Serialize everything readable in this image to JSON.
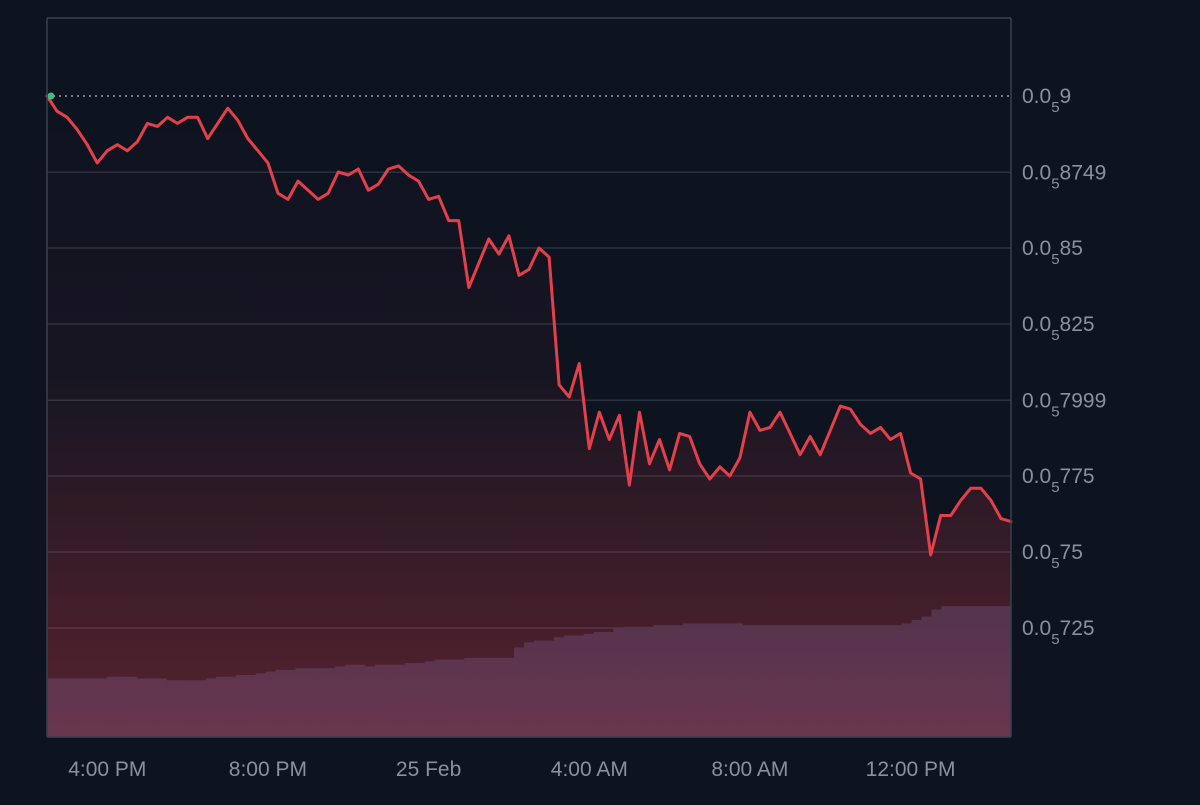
{
  "chart_data": {
    "type": "area",
    "title": "",
    "xlabel": "",
    "ylabel": "",
    "grid": true,
    "colors": {
      "background": "#0e1320",
      "line": "#e5404a",
      "fill_top": "#e5404a",
      "grid": "#2b3140",
      "axis": "#3a4050",
      "volume": "#26304f",
      "reference": "#9aa0ac",
      "start_marker": "#3fbf7f"
    },
    "y_axis": {
      "position": "right",
      "ylim": [
        7.17e-07,
        9.25e-07
      ],
      "ticks": [
        {
          "value": 9e-07,
          "prefix": "0.0",
          "zeros": "5",
          "digits": "9"
        },
        {
          "value": 8.749e-07,
          "prefix": "0.0",
          "zeros": "5",
          "digits": "8749"
        },
        {
          "value": 8.5e-07,
          "prefix": "0.0",
          "zeros": "5",
          "digits": "85"
        },
        {
          "value": 8.25e-07,
          "prefix": "0.0",
          "zeros": "5",
          "digits": "825"
        },
        {
          "value": 7.999e-07,
          "prefix": "0.0",
          "zeros": "5",
          "digits": "7999"
        },
        {
          "value": 7.75e-07,
          "prefix": "0.0",
          "zeros": "5",
          "digits": "775"
        },
        {
          "value": 7.5e-07,
          "prefix": "0.0",
          "zeros": "5",
          "digits": "75"
        },
        {
          "value": 7.25e-07,
          "prefix": "0.0",
          "zeros": "5",
          "digits": "725"
        }
      ]
    },
    "x_axis": {
      "xlim": [
        "24 Feb 14:30",
        "25 Feb 14:30"
      ],
      "ticks": [
        {
          "value": "24 Feb 16:00",
          "label": "4:00 PM"
        },
        {
          "value": "24 Feb 20:00",
          "label": "8:00 PM"
        },
        {
          "value": "25 Feb 00:00",
          "label": "25 Feb"
        },
        {
          "value": "25 Feb 04:00",
          "label": "4:00 AM"
        },
        {
          "value": "25 Feb 08:00",
          "label": "8:00 AM"
        },
        {
          "value": "25 Feb 12:00",
          "label": "12:00 PM"
        }
      ]
    },
    "reference_line": {
      "value": 9e-07,
      "style": "dotted"
    },
    "price_series": {
      "x": [
        "24 Feb 14:30",
        "24 Feb 14:45",
        "24 Feb 15:00",
        "24 Feb 15:15",
        "24 Feb 15:30",
        "24 Feb 15:45",
        "24 Feb 16:00",
        "24 Feb 16:15",
        "24 Feb 16:30",
        "24 Feb 16:45",
        "24 Feb 17:00",
        "24 Feb 17:15",
        "24 Feb 17:30",
        "24 Feb 17:45",
        "24 Feb 18:00",
        "24 Feb 18:15",
        "24 Feb 18:30",
        "24 Feb 18:45",
        "24 Feb 19:00",
        "24 Feb 19:15",
        "24 Feb 19:30",
        "24 Feb 19:45",
        "24 Feb 20:00",
        "24 Feb 20:15",
        "24 Feb 20:30",
        "24 Feb 20:45",
        "24 Feb 21:00",
        "24 Feb 21:15",
        "24 Feb 21:30",
        "24 Feb 21:45",
        "24 Feb 22:00",
        "24 Feb 22:15",
        "24 Feb 22:30",
        "24 Feb 22:45",
        "24 Feb 23:00",
        "24 Feb 23:15",
        "24 Feb 23:30",
        "24 Feb 23:45",
        "25 Feb 00:00",
        "25 Feb 00:15",
        "25 Feb 00:30",
        "25 Feb 00:45",
        "25 Feb 01:00",
        "25 Feb 01:15",
        "25 Feb 01:30",
        "25 Feb 01:45",
        "25 Feb 02:00",
        "25 Feb 02:15",
        "25 Feb 02:30",
        "25 Feb 02:45",
        "25 Feb 03:00",
        "25 Feb 03:15",
        "25 Feb 03:30",
        "25 Feb 03:45",
        "25 Feb 04:00",
        "25 Feb 04:15",
        "25 Feb 04:30",
        "25 Feb 04:45",
        "25 Feb 05:00",
        "25 Feb 05:15",
        "25 Feb 05:30",
        "25 Feb 05:45",
        "25 Feb 06:00",
        "25 Feb 06:15",
        "25 Feb 06:30",
        "25 Feb 06:45",
        "25 Feb 07:00",
        "25 Feb 07:15",
        "25 Feb 07:30",
        "25 Feb 07:45",
        "25 Feb 08:00",
        "25 Feb 08:15",
        "25 Feb 08:30",
        "25 Feb 08:45",
        "25 Feb 09:00",
        "25 Feb 09:15",
        "25 Feb 09:30",
        "25 Feb 09:45",
        "25 Feb 10:00",
        "25 Feb 10:15",
        "25 Feb 10:30",
        "25 Feb 10:45",
        "25 Feb 11:00",
        "25 Feb 11:15",
        "25 Feb 11:30",
        "25 Feb 11:45",
        "25 Feb 12:00",
        "25 Feb 12:15",
        "25 Feb 12:30",
        "25 Feb 12:45",
        "25 Feb 13:00",
        "25 Feb 13:15",
        "25 Feb 13:30",
        "25 Feb 13:45",
        "25 Feb 14:00",
        "25 Feb 14:15",
        "25 Feb 14:30"
      ],
      "values": [
        9e-07,
        8.95e-07,
        8.93e-07,
        8.89e-07,
        8.84e-07,
        8.78e-07,
        8.82e-07,
        8.84e-07,
        8.82e-07,
        8.85e-07,
        8.91e-07,
        8.9e-07,
        8.93e-07,
        8.91e-07,
        8.93e-07,
        8.93e-07,
        8.86e-07,
        8.91e-07,
        8.96e-07,
        8.92e-07,
        8.86e-07,
        8.82e-07,
        8.78e-07,
        8.68e-07,
        8.66e-07,
        8.72e-07,
        8.69e-07,
        8.66e-07,
        8.68e-07,
        8.75e-07,
        8.74e-07,
        8.76e-07,
        8.69e-07,
        8.71e-07,
        8.76e-07,
        8.77e-07,
        8.74e-07,
        8.72e-07,
        8.66e-07,
        8.67e-07,
        8.59e-07,
        8.59e-07,
        8.37e-07,
        8.45e-07,
        8.53e-07,
        8.48e-07,
        8.54e-07,
        8.41e-07,
        8.43e-07,
        8.5e-07,
        8.47e-07,
        8.05e-07,
        8.01e-07,
        8.12e-07,
        7.84e-07,
        7.96e-07,
        7.87e-07,
        7.95e-07,
        7.72e-07,
        7.96e-07,
        7.79e-07,
        7.87e-07,
        7.77e-07,
        7.89e-07,
        7.88e-07,
        7.79e-07,
        7.74e-07,
        7.78e-07,
        7.75e-07,
        7.81e-07,
        7.96e-07,
        7.9e-07,
        7.91e-07,
        7.96e-07,
        7.89e-07,
        7.82e-07,
        7.88e-07,
        7.82e-07,
        7.9e-07,
        7.98e-07,
        7.97e-07,
        7.92e-07,
        7.89e-07,
        7.91e-07,
        7.87e-07,
        7.89e-07,
        7.76e-07,
        7.74e-07,
        7.49e-07,
        7.62e-07,
        7.62e-07,
        7.67e-07,
        7.71e-07,
        7.71e-07,
        7.67e-07,
        7.61e-07,
        7.6e-07
      ]
    },
    "volume_series": {
      "values": [
        17,
        17,
        17,
        17,
        17,
        17,
        17.5,
        17.5,
        17.5,
        17,
        17,
        17,
        16.5,
        16.5,
        16.5,
        16.5,
        17,
        17.5,
        17.5,
        18,
        18,
        18.5,
        19,
        19.5,
        19.5,
        20,
        20,
        20,
        20,
        20.5,
        21,
        21,
        20.5,
        21,
        21,
        21,
        21.5,
        21.5,
        22,
        22.5,
        22.5,
        22.5,
        23,
        23,
        23,
        23,
        23,
        26,
        27.5,
        28,
        28,
        29,
        29.5,
        29.5,
        30,
        30.5,
        30.5,
        31.5,
        32,
        32,
        32,
        32.5,
        32.5,
        32.5,
        33,
        33,
        33,
        33,
        33,
        33,
        32.5,
        32.5,
        32.5,
        32.5,
        32.5,
        32.5,
        32.5,
        32.5,
        32.5,
        32.5,
        32.5,
        32.5,
        32.5,
        32.5,
        32.5,
        32.5,
        33,
        34,
        35,
        37,
        38,
        38,
        38,
        38,
        38,
        38,
        38
      ]
    }
  }
}
